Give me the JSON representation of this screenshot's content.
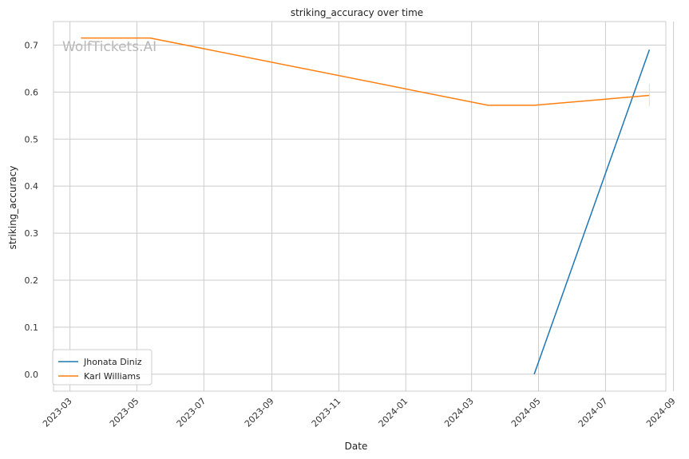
{
  "chart_data": {
    "type": "line",
    "title": "striking_accuracy over time",
    "xlabel": "Date",
    "ylabel": "striking_accuracy",
    "x_axis_type": "date",
    "xlim": [
      "2023-02-14",
      "2024-08-25"
    ],
    "ylim": [
      -0.036,
      0.75
    ],
    "x_ticks": [
      "2023-03",
      "2023-05",
      "2023-07",
      "2023-09",
      "2023-11",
      "2024-01",
      "2024-03",
      "2024-05",
      "2024-07",
      "2024-09"
    ],
    "y_ticks": [
      "0.0",
      "0.1",
      "0.2",
      "0.3",
      "0.4",
      "0.5",
      "0.6",
      "0.7"
    ],
    "grid": true,
    "legend_position": "lower-left",
    "watermark": "WolfTickets.AI",
    "series": [
      {
        "name": "Jhonata Diniz",
        "color": "#1f77b4",
        "points": [
          {
            "x": "2024-04-27",
            "y": 0.0
          },
          {
            "x": "2024-08-10",
            "y": 0.69
          }
        ]
      },
      {
        "name": "Karl Williams",
        "color": "#ff7f0e",
        "points": [
          {
            "x": "2023-03-11",
            "y": 0.715
          },
          {
            "x": "2023-05-13",
            "y": 0.715
          },
          {
            "x": "2024-03-16",
            "y": 0.572
          },
          {
            "x": "2024-04-27",
            "y": 0.572
          },
          {
            "x": "2024-08-10",
            "y": 0.593
          }
        ]
      }
    ]
  }
}
